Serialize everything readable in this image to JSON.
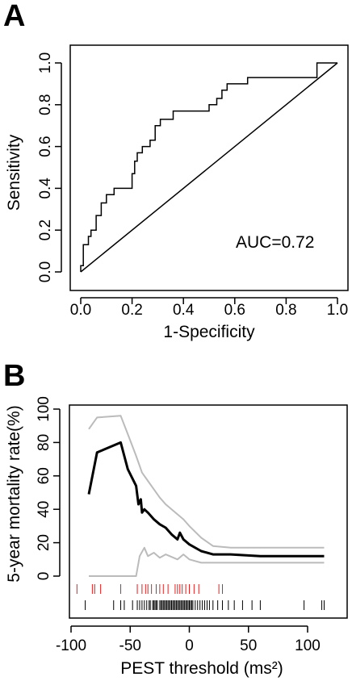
{
  "chart_data": [
    {
      "type": "line",
      "panel_label": "A",
      "title": "",
      "xlabel": "1-Specificity",
      "ylabel": "Sensitivity",
      "xlim": [
        0,
        1
      ],
      "ylim": [
        0,
        1
      ],
      "x_ticks": [
        0.0,
        0.2,
        0.4,
        0.6,
        0.8,
        1.0
      ],
      "y_ticks": [
        0.0,
        0.2,
        0.4,
        0.6,
        0.8,
        1.0
      ],
      "x_tick_labels": [
        "0.0",
        "0.2",
        "0.4",
        "0.6",
        "0.8",
        "1.0"
      ],
      "y_tick_labels": [
        "0.0",
        "0.2",
        "0.4",
        "0.6",
        "0.8",
        "1.0"
      ],
      "grid": false,
      "annotation": "AUC=0.72",
      "series": [
        {
          "name": "",
          "kind": "step",
          "x": [
            0,
            0,
            0.01,
            0.01,
            0.03,
            0.03,
            0.04,
            0.04,
            0.06,
            0.06,
            0.08,
            0.08,
            0.1,
            0.1,
            0.13,
            0.13,
            0.2,
            0.2,
            0.21,
            0.21,
            0.22,
            0.22,
            0.24,
            0.24,
            0.27,
            0.27,
            0.29,
            0.29,
            0.31,
            0.31,
            0.36,
            0.36,
            0.5,
            0.5,
            0.53,
            0.53,
            0.55,
            0.55,
            0.57,
            0.57,
            0.62,
            0.62,
            0.65,
            0.65,
            0.7,
            0.7,
            0.92,
            0.92,
            1.0,
            1.0
          ],
          "y": [
            0,
            0.03,
            0.03,
            0.13,
            0.13,
            0.17,
            0.17,
            0.2,
            0.2,
            0.27,
            0.27,
            0.33,
            0.33,
            0.37,
            0.37,
            0.4,
            0.4,
            0.47,
            0.47,
            0.53,
            0.53,
            0.57,
            0.57,
            0.6,
            0.6,
            0.63,
            0.63,
            0.7,
            0.7,
            0.73,
            0.73,
            0.77,
            0.77,
            0.8,
            0.8,
            0.83,
            0.83,
            0.87,
            0.87,
            0.9,
            0.9,
            0.9,
            0.9,
            0.93,
            0.93,
            0.93,
            0.93,
            1.0,
            1.0,
            1.0
          ]
        },
        {
          "name": "",
          "kind": "diagonal",
          "x": [
            0,
            1
          ],
          "y": [
            0,
            1
          ]
        }
      ]
    },
    {
      "type": "line",
      "panel_label": "B",
      "title": "",
      "xlabel": "PEST threshold (ms²)",
      "ylabel": "5-year mortality rate(%)",
      "xlim": [
        -100,
        120
      ],
      "ylim": [
        0,
        100
      ],
      "x_ticks": [
        -100,
        -50,
        0,
        50,
        100
      ],
      "y_ticks": [
        0,
        20,
        40,
        60,
        80,
        100
      ],
      "x_tick_labels": [
        "-100",
        "-50",
        "0",
        "50",
        "100"
      ],
      "y_tick_labels": [
        "0",
        "20",
        "40",
        "60",
        "80",
        "100"
      ],
      "grid": false,
      "series": [
        {
          "name": "",
          "role": "estimate",
          "color": "#000000",
          "x": [
            -85,
            -78,
            -58,
            -52,
            -45,
            -43,
            -41,
            -40,
            -38,
            -35,
            -30,
            -25,
            -20,
            -15,
            -10,
            -8,
            -5,
            0,
            10,
            20,
            35,
            60,
            114
          ],
          "y": [
            49,
            74,
            80,
            64,
            54,
            43,
            46,
            38,
            40,
            38,
            34,
            31,
            29,
            25,
            22,
            26,
            22,
            19,
            15,
            13,
            13,
            12,
            12
          ]
        },
        {
          "name": "",
          "role": "upper",
          "color": "#bbbbbb",
          "x": [
            -85,
            -78,
            -58,
            -52,
            -45,
            -40,
            -35,
            -30,
            -25,
            -20,
            -10,
            -5,
            0,
            10,
            20,
            35,
            60,
            114
          ],
          "y": [
            88,
            95,
            96,
            85,
            72,
            62,
            57,
            52,
            47,
            43,
            37,
            34,
            30,
            23,
            18,
            17,
            17,
            17
          ]
        },
        {
          "name": "",
          "role": "lower",
          "color": "#bbbbbb",
          "x": [
            -85,
            -45,
            -42,
            -38,
            -35,
            -30,
            -25,
            -20,
            -10,
            -5,
            0,
            10,
            20,
            35,
            60,
            114
          ],
          "y": [
            0,
            0,
            12,
            17,
            12,
            14,
            11,
            13,
            10,
            13,
            10,
            8,
            8,
            8,
            8,
            8
          ]
        }
      ],
      "rug": [
        {
          "name": "",
          "color": "#e02020",
          "x": [
            -95,
            -82,
            -80,
            -75,
            -58,
            -44,
            -40,
            -37,
            -35,
            -32,
            -28,
            -25,
            -22,
            -18,
            -12,
            -10,
            -8,
            -6,
            -3,
            0,
            4,
            8,
            25,
            28
          ]
        },
        {
          "name": "",
          "color": "#000000",
          "x": [
            -88,
            -64,
            -58,
            -55,
            -48,
            -44,
            -42,
            -40,
            -38,
            -36,
            -34,
            -33,
            -31,
            -30,
            -29,
            -28,
            -27,
            -25,
            -24,
            -23,
            -22,
            -21,
            -20,
            -19,
            -18,
            -17,
            -16,
            -15,
            -14,
            -13,
            -12,
            -11,
            -10,
            -9,
            -8,
            -7,
            -6,
            -5,
            -4,
            -3,
            -2,
            -1,
            0,
            1,
            2,
            3,
            5,
            7,
            9,
            11,
            13,
            15,
            17,
            20,
            24,
            28,
            33,
            38,
            45,
            53,
            60,
            97,
            112,
            114
          ]
        }
      ]
    }
  ]
}
